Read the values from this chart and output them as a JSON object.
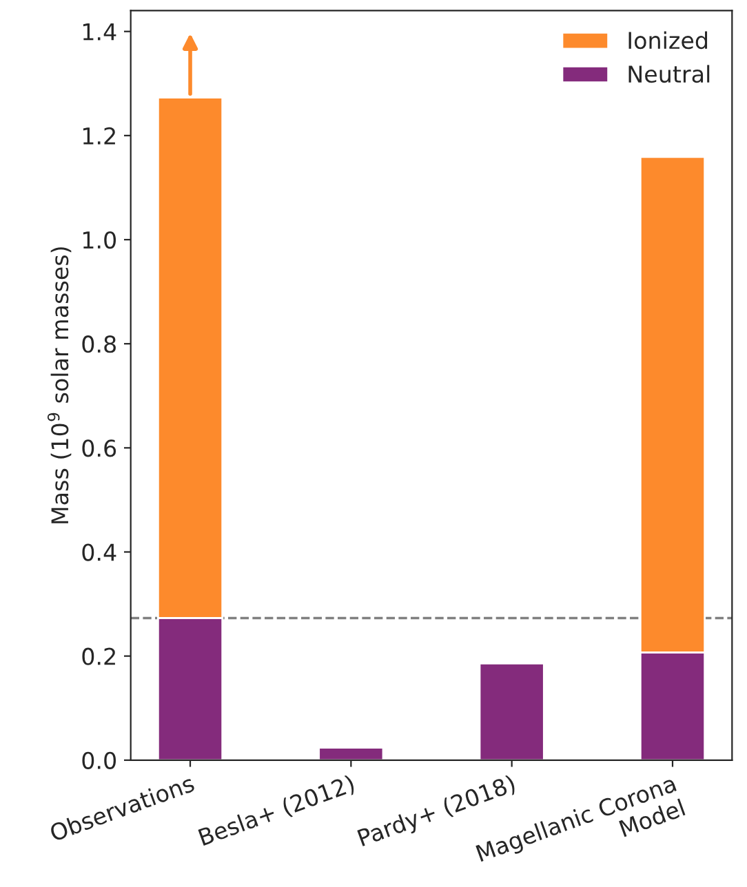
{
  "chart_data": {
    "type": "bar",
    "stacked": true,
    "categories": [
      "Observations",
      "Besla+ (2012)",
      "Pardy+ (2018)",
      "Magellanic Corona\nModel"
    ],
    "series": [
      {
        "name": "Neutral",
        "color": "#842b7c",
        "values": [
          0.273,
          0.024,
          0.186,
          0.207
        ]
      },
      {
        "name": "Ionized",
        "color": "#fd8a2c",
        "values": [
          1.0,
          null,
          null,
          0.952
        ]
      }
    ],
    "ylabel": "Mass (10$^{9}$ solar masses)",
    "ylim": [
      0,
      1.44
    ],
    "yticks": [
      {
        "value": 0,
        "label": "0.0"
      },
      {
        "value": 0.2,
        "label": "0.2"
      },
      {
        "value": 0.4,
        "label": "0.4"
      },
      {
        "value": 0.6,
        "label": "0.6"
      },
      {
        "value": 0.8,
        "label": "0.8"
      },
      {
        "value": 1.0,
        "label": "1.0"
      },
      {
        "value": 1.2,
        "label": "1.2"
      },
      {
        "value": 1.4,
        "label": "1.4"
      }
    ],
    "ref_lines": [
      {
        "axis": "y",
        "value": 0.273,
        "color": "#808080",
        "line_style": "dashed"
      }
    ],
    "legend": "top right",
    "grid": false
  }
}
